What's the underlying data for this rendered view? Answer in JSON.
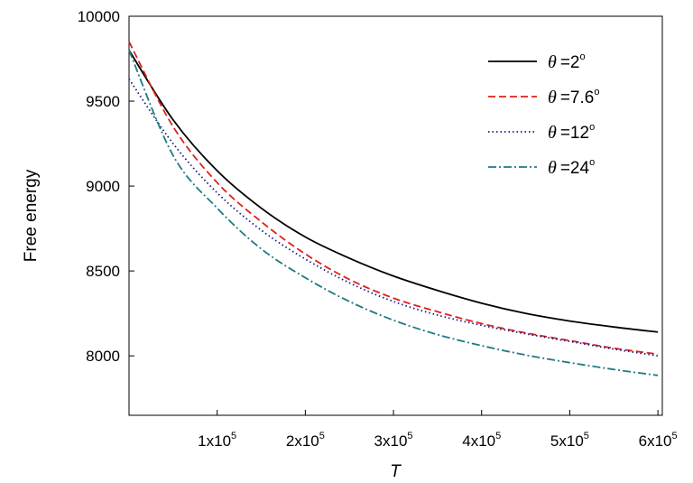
{
  "chart_data": {
    "type": "line",
    "xlabel": "T",
    "ylabel": "Free energy",
    "xlim": [
      0,
      605000
    ],
    "ylim": [
      7650,
      10000
    ],
    "x_ticks": [
      100000,
      200000,
      300000,
      400000,
      500000,
      600000
    ],
    "x_tick_labels": [
      {
        "base": "1x10",
        "exp": "5"
      },
      {
        "base": "2x10",
        "exp": "5"
      },
      {
        "base": "3x10",
        "exp": "5"
      },
      {
        "base": "4x10",
        "exp": "5"
      },
      {
        "base": "5x10",
        "exp": "5"
      },
      {
        "base": "6x10",
        "exp": "5"
      }
    ],
    "y_ticks": [
      8000,
      8500,
      9000,
      9500,
      10000
    ],
    "y_tick_labels": [
      "8000",
      "8500",
      "9000",
      "9500",
      "10000"
    ],
    "legend_position": "top-right",
    "grid": false,
    "series": [
      {
        "name": "θ=2°",
        "symbol": "θ",
        "label": "=2",
        "sup": "o",
        "color": "#000000",
        "dash": "solid",
        "x": [
          0,
          50000,
          100000,
          150000,
          200000,
          250000,
          300000,
          350000,
          400000,
          450000,
          500000,
          550000,
          600000
        ],
        "y": [
          9800,
          9390,
          9090,
          8870,
          8700,
          8575,
          8470,
          8385,
          8310,
          8250,
          8205,
          8170,
          8140
        ]
      },
      {
        "name": "θ=7.6°",
        "symbol": "θ",
        "label": "=7.6",
        "sup": "o",
        "color": "#e0201b",
        "dash": "dashed",
        "x": [
          0,
          50000,
          100000,
          150000,
          200000,
          250000,
          300000,
          350000,
          400000,
          450000,
          500000,
          550000,
          600000
        ],
        "y": [
          9850,
          9350,
          9020,
          8790,
          8600,
          8450,
          8340,
          8260,
          8190,
          8135,
          8090,
          8045,
          8010
        ]
      },
      {
        "name": "θ=12°",
        "symbol": "θ",
        "label": "=12",
        "sup": "o",
        "color": "#1a1a80",
        "dash": "dotted",
        "x": [
          0,
          50000,
          100000,
          150000,
          200000,
          250000,
          300000,
          350000,
          400000,
          450000,
          500000,
          550000,
          600000
        ],
        "y": [
          9630,
          9250,
          8960,
          8740,
          8570,
          8430,
          8320,
          8240,
          8180,
          8130,
          8085,
          8040,
          8000
        ]
      },
      {
        "name": "θ=24°",
        "symbol": "θ",
        "label": "=24",
        "sup": "o",
        "color": "#1f7a80",
        "dash": "dashdot",
        "x": [
          0,
          50000,
          100000,
          150000,
          200000,
          250000,
          300000,
          350000,
          400000,
          450000,
          500000,
          550000,
          600000
        ],
        "y": [
          9800,
          9180,
          8870,
          8630,
          8460,
          8320,
          8210,
          8125,
          8060,
          8005,
          7960,
          7920,
          7885
        ]
      }
    ]
  }
}
